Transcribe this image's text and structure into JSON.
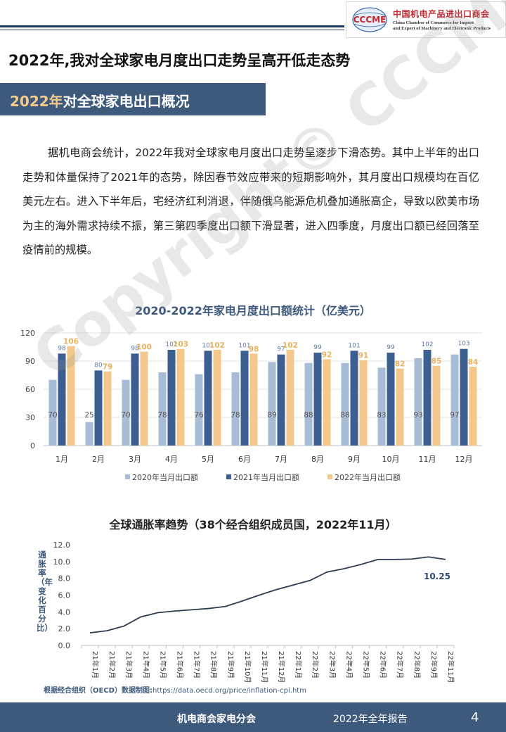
{
  "header": {
    "logo_mark": "CCCME",
    "logo_cn": "中国机电产品进出口商会",
    "logo_en_line1": "China Chamber of Commerce for Import",
    "logo_en_line2": "and Export of Machinery and Electronic Products"
  },
  "main_title": "2022年,我对全球家电月度出口走势呈高开低走态势",
  "section": {
    "year": "2022年",
    "rest": "对全球家电出口概况"
  },
  "paragraph": "据机电商会统计，2022年我对全球家电月度出口走势呈逐步下滑态势。其中上半年的出口走势和体量保持了2021年的态势，除因春节效应带来的短期影响外，其月度出口规模均在百亿美元左右。进入下半年后，宅经济红利消退，伴随俄乌能源危机叠加通胀高企，导致以欧美市场为主的海外需求持续不振，第三第四季度出口额下滑显著，进入四季度，月度出口额已经回落至疫情前的规模。",
  "watermark": "Copyright© CCCME",
  "chart_data": [
    {
      "type": "bar",
      "title": "2020-2022年家电月度出口额统计（亿美元）",
      "categories": [
        "1月",
        "2月",
        "3月",
        "4月",
        "5月",
        "6月",
        "7月",
        "8月",
        "9月",
        "10月",
        "11月",
        "12月"
      ],
      "series": [
        {
          "name": "2020年当月出口额",
          "color": "#a9bcd6",
          "values": [
            70,
            25,
            70,
            78,
            76,
            78,
            89,
            88,
            88,
            83,
            93,
            97
          ]
        },
        {
          "name": "2021年当月出口额",
          "color": "#3d5f8f",
          "values": [
            98,
            80,
            98,
            102,
            101,
            101,
            97,
            99,
            101,
            99,
            102,
            103
          ]
        },
        {
          "name": "2022年当月出口额",
          "color": "#f2c98a",
          "values": [
            106,
            79,
            100,
            103,
            102,
            98,
            102,
            92,
            91,
            82,
            85,
            84
          ]
        }
      ],
      "ylim": [
        0,
        120
      ],
      "yticks": [
        0,
        30,
        60,
        90,
        120
      ],
      "legend": "bottom"
    },
    {
      "type": "line",
      "title": "全球通胀率趋势（38个经合组织成员国，2022年11月）",
      "ylabel": "通胀率（年变化百分比）",
      "x": [
        "21年1月",
        "21年2月",
        "21年3月",
        "21年4月",
        "21年5月",
        "21年6月",
        "21年7月",
        "21年8月",
        "21年9月",
        "21年10月",
        "21年11月",
        "21年12月",
        "22年1月",
        "22年2月",
        "22年3月",
        "22年4月",
        "22年5月",
        "22年6月",
        "22年7月",
        "22年8月",
        "22年9月",
        "22年11月"
      ],
      "values": [
        1.5,
        1.75,
        2.3,
        3.4,
        3.9,
        4.1,
        4.25,
        4.4,
        4.65,
        5.3,
        6.0,
        6.65,
        7.2,
        7.75,
        8.75,
        9.15,
        9.65,
        10.25,
        10.25,
        10.3,
        10.55,
        10.25
      ],
      "ylim": [
        0,
        12
      ],
      "yticks": [
        "0.0",
        "2.0",
        "4.0",
        "6.0",
        "8.0",
        "10.0",
        "12.0"
      ],
      "end_label": "10.25",
      "line_color": "#2e3c52"
    }
  ],
  "source": {
    "label": "根据经合组织（OECD）数据制图:",
    "url": "https://data.oecd.org/price/inflation-cpi.htm"
  },
  "footer": {
    "org": "机电商会家电分会",
    "report": "2022年全年报告",
    "page": "4"
  }
}
